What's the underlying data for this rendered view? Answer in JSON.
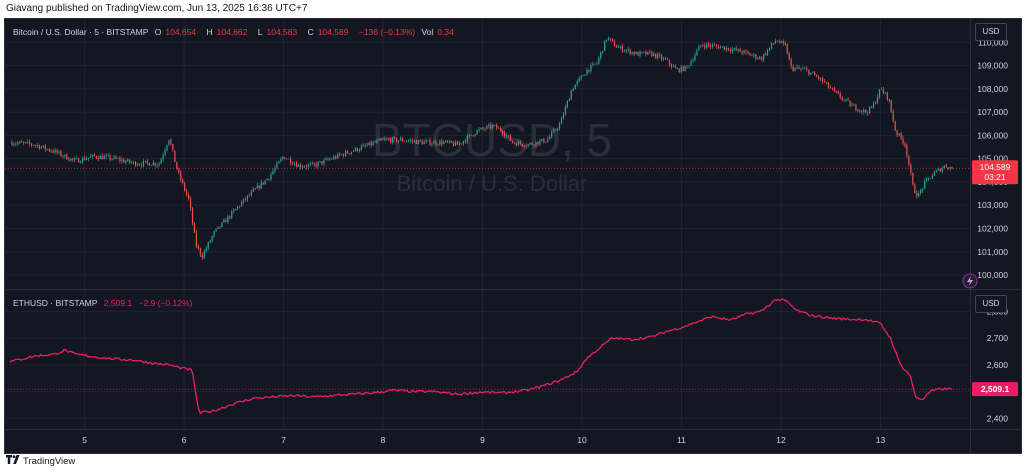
{
  "attribution": "Giavang published on TradingView.com, Jun 13, 2025 16:36 UTC+7",
  "footer": {
    "logo_icon": "tradingview-logo-icon",
    "brand": "TradingView"
  },
  "colors": {
    "background": "#131722",
    "grid": "#1f2330",
    "up": "#26a69a",
    "down": "#ef5350",
    "eth_line": "#e91e63",
    "price_line": "#f23645",
    "axis_text": "#d1d4dc",
    "watermark": "#2a2e39"
  },
  "top_legend": {
    "symbol": "Bitcoin / U.S. Dollar · 5 · BITSTAMP",
    "o_label": "O",
    "o_value": "104,654",
    "h_label": "H",
    "h_value": "104,662",
    "l_label": "L",
    "l_value": "104,583",
    "c_value": "104,589",
    "change": "−136 (−0.13%)",
    "vol_label": "Vol",
    "vol_value": "0.34"
  },
  "bottom_legend": {
    "symbol": "ETHUSD · BITSTAMP",
    "value": "2,509.1",
    "change": "−2.9 (−0.12%)"
  },
  "currency_top": "USD",
  "currency_bottom": "USD",
  "watermark": {
    "ticker": "BTCUSD, 5",
    "name": "Bitcoin / U.S. Dollar"
  },
  "price_tags": {
    "btc_price": "104,589",
    "btc_countdown": "03:21",
    "eth_price": "2,509.1"
  },
  "chart_data": [
    {
      "type": "candlestick",
      "symbol": "BTCUSD",
      "interval": "5",
      "ylim": [
        99400,
        111000
      ],
      "y_ticks": [
        100000,
        101000,
        102000,
        103000,
        104000,
        105000,
        106000,
        107000,
        108000,
        109000,
        110000
      ],
      "y_tick_labels": [
        "100,000",
        "101,000",
        "102,000",
        "103,000",
        "104,000",
        "105,000",
        "106,000",
        "107,000",
        "108,000",
        "109,000",
        "110,000"
      ],
      "x_range_days": [
        4.2,
        13.9
      ],
      "x_ticks": [
        5,
        6,
        7,
        8,
        9,
        10,
        11,
        12,
        13
      ],
      "x_tick_labels": [
        "5",
        "6",
        "7",
        "8",
        "9",
        "10",
        "11",
        "12",
        "13"
      ],
      "last_price": 104589,
      "grid": true,
      "anchors": [
        [
          4.25,
          105700
        ],
        [
          4.5,
          105600
        ],
        [
          4.7,
          105300
        ],
        [
          4.9,
          104900
        ],
        [
          5.1,
          105100
        ],
        [
          5.3,
          105000
        ],
        [
          5.5,
          104800
        ],
        [
          5.75,
          104800
        ],
        [
          5.85,
          105900
        ],
        [
          5.93,
          104500
        ],
        [
          6.05,
          103200
        ],
        [
          6.12,
          101300
        ],
        [
          6.18,
          100800
        ],
        [
          6.3,
          101800
        ],
        [
          6.45,
          102500
        ],
        [
          6.6,
          103200
        ],
        [
          6.85,
          104200
        ],
        [
          7.0,
          105100
        ],
        [
          7.15,
          104700
        ],
        [
          7.3,
          104700
        ],
        [
          7.6,
          105200
        ],
        [
          7.8,
          105500
        ],
        [
          8.0,
          105800
        ],
        [
          8.2,
          105800
        ],
        [
          8.4,
          105700
        ],
        [
          8.6,
          105700
        ],
        [
          8.75,
          105600
        ],
        [
          8.95,
          106200
        ],
        [
          9.1,
          106400
        ],
        [
          9.2,
          106200
        ],
        [
          9.3,
          105700
        ],
        [
          9.45,
          105600
        ],
        [
          9.65,
          105800
        ],
        [
          9.78,
          106500
        ],
        [
          9.9,
          108000
        ],
        [
          10.05,
          108800
        ],
        [
          10.15,
          109100
        ],
        [
          10.25,
          110200
        ],
        [
          10.35,
          109800
        ],
        [
          10.55,
          109500
        ],
        [
          10.7,
          109500
        ],
        [
          10.85,
          109200
        ],
        [
          10.95,
          108800
        ],
        [
          11.05,
          108900
        ],
        [
          11.2,
          109900
        ],
        [
          11.4,
          109800
        ],
        [
          11.6,
          109600
        ],
        [
          11.8,
          109300
        ],
        [
          11.95,
          110100
        ],
        [
          12.05,
          109800
        ],
        [
          12.1,
          108900
        ],
        [
          12.25,
          108800
        ],
        [
          12.4,
          108400
        ],
        [
          12.55,
          107800
        ],
        [
          12.7,
          107300
        ],
        [
          12.85,
          107000
        ],
        [
          12.92,
          107200
        ],
        [
          13.0,
          108000
        ],
        [
          13.08,
          107600
        ],
        [
          13.15,
          106200
        ],
        [
          13.25,
          105600
        ],
        [
          13.33,
          103700
        ],
        [
          13.38,
          103400
        ],
        [
          13.45,
          104000
        ],
        [
          13.55,
          104400
        ],
        [
          13.65,
          104700
        ],
        [
          13.72,
          104589
        ]
      ]
    },
    {
      "type": "line",
      "symbol": "ETHUSD",
      "ylim": [
        2360,
        2880
      ],
      "y_ticks": [
        2400,
        2500,
        2600,
        2700,
        2800
      ],
      "y_tick_labels": [
        "2,400",
        "2,500",
        "2,600",
        "2,700",
        "2,800"
      ],
      "last_value": 2509.1,
      "grid": true,
      "anchors": [
        [
          4.25,
          2612
        ],
        [
          4.5,
          2633
        ],
        [
          4.7,
          2640
        ],
        [
          4.8,
          2655
        ],
        [
          4.9,
          2640
        ],
        [
          5.1,
          2630
        ],
        [
          5.3,
          2622
        ],
        [
          5.5,
          2618
        ],
        [
          5.7,
          2605
        ],
        [
          5.85,
          2600
        ],
        [
          5.95,
          2590
        ],
        [
          6.08,
          2580
        ],
        [
          6.15,
          2420
        ],
        [
          6.3,
          2428
        ],
        [
          6.5,
          2455
        ],
        [
          6.7,
          2475
        ],
        [
          6.9,
          2480
        ],
        [
          7.1,
          2485
        ],
        [
          7.3,
          2480
        ],
        [
          7.6,
          2488
        ],
        [
          7.9,
          2495
        ],
        [
          8.1,
          2505
        ],
        [
          8.3,
          2500
        ],
        [
          8.5,
          2500
        ],
        [
          8.75,
          2490
        ],
        [
          9.0,
          2498
        ],
        [
          9.2,
          2495
        ],
        [
          9.45,
          2505
        ],
        [
          9.6,
          2520
        ],
        [
          9.8,
          2545
        ],
        [
          9.95,
          2575
        ],
        [
          10.05,
          2625
        ],
        [
          10.15,
          2655
        ],
        [
          10.3,
          2700
        ],
        [
          10.5,
          2695
        ],
        [
          10.7,
          2705
        ],
        [
          10.85,
          2725
        ],
        [
          11.0,
          2740
        ],
        [
          11.15,
          2760
        ],
        [
          11.3,
          2780
        ],
        [
          11.5,
          2768
        ],
        [
          11.65,
          2790
        ],
        [
          11.8,
          2800
        ],
        [
          11.95,
          2845
        ],
        [
          12.05,
          2840
        ],
        [
          12.15,
          2805
        ],
        [
          12.3,
          2785
        ],
        [
          12.5,
          2775
        ],
        [
          12.7,
          2770
        ],
        [
          12.85,
          2770
        ],
        [
          13.0,
          2755
        ],
        [
          13.1,
          2700
        ],
        [
          13.2,
          2600
        ],
        [
          13.3,
          2560
        ],
        [
          13.35,
          2480
        ],
        [
          13.42,
          2470
        ],
        [
          13.5,
          2500
        ],
        [
          13.6,
          2510
        ],
        [
          13.72,
          2509
        ]
      ]
    }
  ]
}
